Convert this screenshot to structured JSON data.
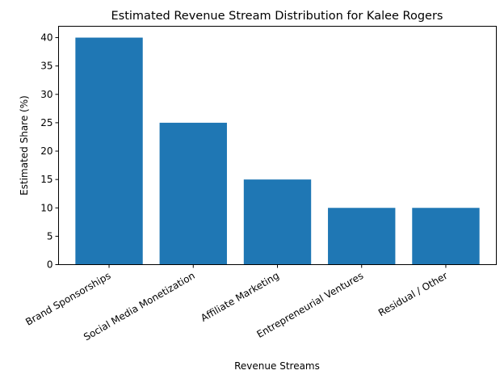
{
  "chart_data": {
    "type": "bar",
    "title": "Estimated Revenue Stream Distribution for Kalee Rogers",
    "xlabel": "Revenue Streams",
    "ylabel": "Estimated Share (%)",
    "categories": [
      "Brand Sponsorships",
      "Social Media Monetization",
      "Affiliate Marketing",
      "Entrepreneurial Ventures",
      "Residual / Other"
    ],
    "values": [
      40,
      25,
      15,
      10,
      10
    ],
    "ylim": [
      0,
      42
    ],
    "yticks": [
      0,
      5,
      10,
      15,
      20,
      25,
      30,
      35,
      40
    ],
    "bar_color": "#1f77b4",
    "grid": false,
    "legend": "none"
  }
}
